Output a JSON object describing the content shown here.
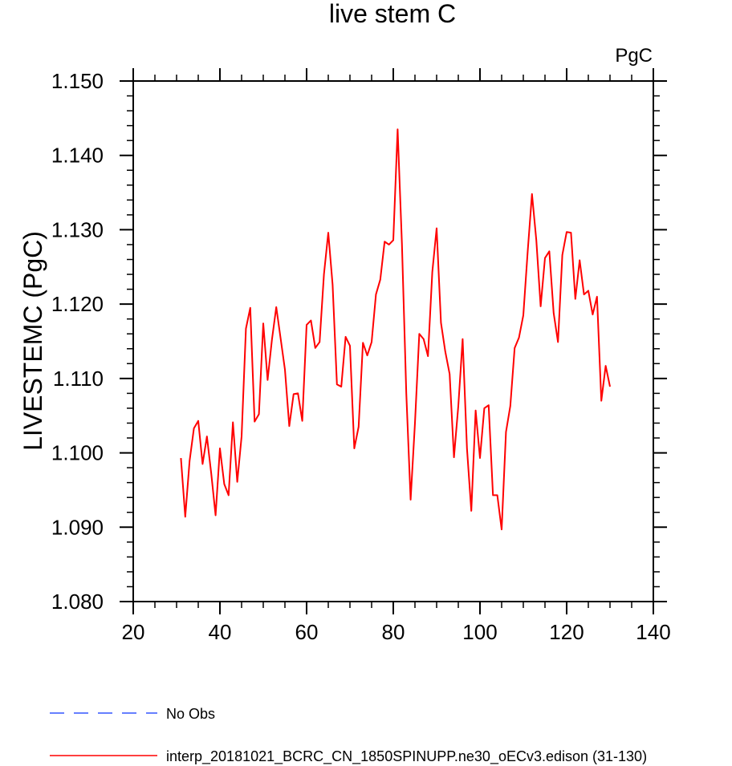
{
  "chart_data": {
    "type": "line",
    "title": "live stem C",
    "units": "PgC",
    "ylabel": "LIVESTEMC  (PgC)",
    "xlabel": "",
    "xlim": [
      20,
      140
    ],
    "ylim": [
      1.08,
      1.15
    ],
    "x_major_ticks": [
      20,
      40,
      60,
      80,
      100,
      120,
      140
    ],
    "x_tick_labels": [
      "20",
      "40",
      "60",
      "80",
      "100",
      "120",
      "140"
    ],
    "y_major_ticks": [
      1.08,
      1.09,
      1.1,
      1.11,
      1.12,
      1.13,
      1.14,
      1.15
    ],
    "y_tick_labels": [
      "1.080",
      "1.090",
      "1.100",
      "1.110",
      "1.120",
      "1.130",
      "1.140",
      "1.150"
    ],
    "grid": false,
    "legend_position": "bottom-left",
    "series": [
      {
        "name": "No Obs",
        "color": "#3355ff",
        "style": "dashed",
        "x": [],
        "values": []
      },
      {
        "name": "interp_20181021_BCRC_CN_1850SPINUPP.ne30_oECv3.edison (31-130)",
        "color": "#ff0000",
        "style": "solid",
        "x": [
          31,
          32,
          33,
          34,
          35,
          36,
          37,
          38,
          39,
          40,
          41,
          42,
          43,
          44,
          45,
          46,
          47,
          48,
          49,
          50,
          51,
          52,
          53,
          54,
          55,
          56,
          57,
          58,
          59,
          60,
          61,
          62,
          63,
          64,
          65,
          66,
          67,
          68,
          69,
          70,
          71,
          72,
          73,
          74,
          75,
          76,
          77,
          78,
          79,
          80,
          81,
          82,
          83,
          84,
          85,
          86,
          87,
          88,
          89,
          90,
          91,
          92,
          93,
          94,
          95,
          96,
          97,
          98,
          99,
          100,
          101,
          102,
          103,
          104,
          105,
          106,
          107,
          108,
          109,
          110,
          111,
          112,
          113,
          114,
          115,
          116,
          117,
          118,
          119,
          120,
          121,
          122,
          123,
          124,
          125,
          126,
          127,
          128,
          129,
          130
        ],
        "values": [
          1.0993,
          1.0914,
          1.0989,
          1.1033,
          1.1043,
          1.0985,
          1.1022,
          1.0972,
          1.0916,
          1.1006,
          1.0958,
          1.0943,
          1.1041,
          1.0961,
          1.1022,
          1.1167,
          1.1195,
          1.1042,
          1.1052,
          1.1174,
          1.1098,
          1.1152,
          1.1196,
          1.1154,
          1.1112,
          1.1036,
          1.1079,
          1.108,
          1.1043,
          1.1172,
          1.1178,
          1.1141,
          1.1149,
          1.124,
          1.1296,
          1.1226,
          1.1092,
          1.1089,
          1.1156,
          1.1144,
          1.1006,
          1.1035,
          1.1148,
          1.1131,
          1.1149,
          1.1213,
          1.1233,
          1.1284,
          1.128,
          1.1286,
          1.1435,
          1.128,
          1.108,
          1.0937,
          1.104,
          1.116,
          1.1153,
          1.113,
          1.1243,
          1.1302,
          1.1175,
          1.1136,
          1.1106,
          1.0994,
          1.1063,
          1.1153,
          1.1006,
          1.0922,
          1.1057,
          1.0993,
          1.106,
          1.1064,
          1.0943,
          1.0943,
          1.0897,
          1.1028,
          1.1063,
          1.1141,
          1.1155,
          1.1185,
          1.127,
          1.1348,
          1.1286,
          1.1197,
          1.1262,
          1.1271,
          1.1188,
          1.1149,
          1.1266,
          1.1297,
          1.1296,
          1.1207,
          1.1259,
          1.1213,
          1.1218,
          1.1186,
          1.121,
          1.107,
          1.1117,
          1.1089
        ]
      }
    ]
  }
}
